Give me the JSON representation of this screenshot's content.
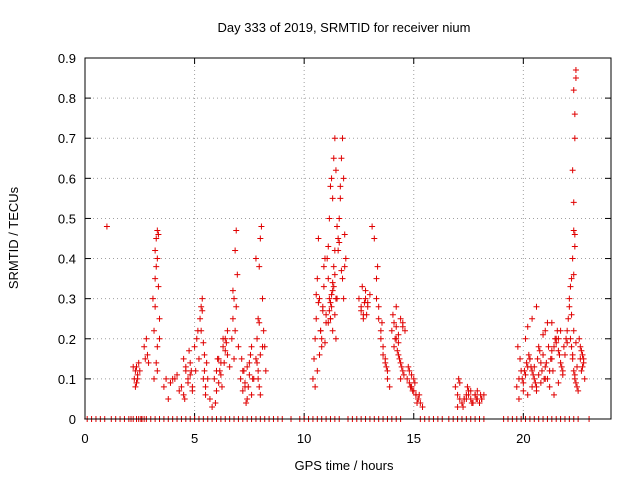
{
  "chart_data": {
    "type": "scatter",
    "title": "Day 333 of 2019, SRMTID for receiver nium",
    "xlabel": "GPS time / hours",
    "ylabel": "SRMTID / TECUs",
    "xlim": [
      0,
      24
    ],
    "ylim": [
      0,
      0.9
    ],
    "xticks": [
      0,
      5,
      10,
      15,
      20
    ],
    "xtick_labels": [
      "0",
      "5",
      "10",
      "15",
      "20"
    ],
    "yticks": [
      0,
      0.1,
      0.2,
      0.3,
      0.4,
      0.5,
      0.6,
      0.7,
      0.8,
      0.9
    ],
    "ytick_labels": [
      "0",
      "0.1",
      "0.2",
      "0.3",
      "0.4",
      "0.5",
      "0.6",
      "0.7",
      "0.8",
      "0.9"
    ],
    "grid": true,
    "marker": "+",
    "color": "#e00000",
    "series": [
      {
        "name": "SRMTID",
        "x": [
          0.1,
          0.3,
          0.5,
          0.7,
          0.9,
          1.2,
          1.4,
          1.6,
          1.8,
          2.0,
          2.1,
          2.2,
          2.35,
          2.45,
          2.55,
          2.6,
          2.7,
          2.8,
          3.0,
          3.2,
          3.4,
          3.6,
          3.8,
          4.0,
          4.2,
          4.4,
          4.6,
          4.8,
          5.0,
          5.2,
          5.4,
          5.6,
          5.8,
          6.0,
          6.2,
          6.4,
          6.6,
          6.8,
          7.0,
          7.2,
          7.4,
          7.6,
          7.8,
          8.0,
          8.2,
          8.4,
          8.6,
          8.8,
          9.0,
          9.4,
          9.8,
          10.0,
          10.2,
          10.4,
          10.6,
          10.8,
          11.0,
          11.2,
          11.4,
          11.6,
          12.0,
          12.2,
          12.4,
          12.6,
          12.8,
          13.0,
          13.2,
          13.4,
          13.6,
          13.8,
          14.0,
          14.2,
          14.4,
          15.3,
          15.5,
          15.7,
          15.9,
          16.1,
          16.3,
          16.6,
          16.8,
          17.0,
          17.2,
          17.4,
          17.6,
          17.8,
          18.0,
          18.2,
          19.1,
          19.3,
          19.5,
          19.7,
          19.9,
          20.1,
          20.3,
          20.5,
          20.7,
          20.9,
          21.1,
          21.3,
          21.5,
          21.7,
          21.9,
          22.1,
          22.3,
          22.5,
          23.0,
          1.0,
          2.2,
          2.25,
          2.3,
          2.35,
          2.4,
          2.45,
          2.5,
          2.3,
          2.4,
          2.35,
          2.7,
          2.75,
          2.8,
          2.85,
          2.9,
          3.1,
          3.15,
          3.2,
          3.2,
          3.25,
          3.25,
          3.3,
          3.3,
          3.35,
          3.35,
          3.4,
          3.4,
          3.2,
          3.3,
          3.25,
          3.15,
          3.3,
          3.6,
          3.7,
          3.8,
          3.9,
          4.0,
          4.1,
          4.2,
          4.3,
          4.4,
          4.5,
          4.6,
          4.7,
          4.8,
          4.9,
          4.5,
          4.6,
          4.7,
          4.8,
          4.9,
          4.55,
          4.75,
          4.85,
          5.0,
          5.05,
          5.1,
          5.15,
          5.2,
          5.25,
          5.3,
          5.35,
          5.4,
          5.45,
          5.5,
          5.55,
          5.6,
          5.3,
          5.4,
          5.5,
          5.35,
          5.45,
          5.7,
          5.8,
          5.9,
          6.0,
          6.1,
          6.2,
          6.3,
          6.4,
          6.5,
          6.6,
          6.0,
          6.1,
          6.2,
          6.3,
          6.4,
          6.5,
          5.95,
          6.05,
          6.15,
          6.25,
          6.35,
          6.45,
          6.7,
          6.75,
          6.8,
          6.85,
          6.9,
          6.95,
          7.0,
          6.8,
          6.85,
          6.9,
          6.75,
          7.1,
          7.2,
          7.3,
          7.4,
          7.5,
          7.6,
          7.7,
          7.2,
          7.3,
          7.4,
          7.5,
          7.6,
          7.15,
          7.25,
          7.35,
          7.45,
          7.55,
          7.65,
          7.8,
          7.85,
          7.9,
          7.95,
          8.0,
          8.05,
          8.1,
          8.15,
          8.2,
          8.25,
          7.9,
          7.95,
          8.0,
          7.85,
          7.95,
          8.1,
          7.8,
          7.9,
          8.0,
          10.4,
          10.45,
          10.5,
          10.55,
          10.6,
          10.65,
          10.7,
          10.75,
          10.8,
          10.85,
          10.9,
          10.95,
          11.0,
          10.5,
          10.6,
          10.7,
          10.8,
          10.9,
          11.0,
          10.55,
          10.65,
          10.75,
          10.85,
          10.95,
          11.05,
          11.1,
          11.15,
          11.2,
          11.25,
          11.3,
          11.35,
          11.4,
          11.45,
          11.5,
          11.55,
          11.1,
          11.15,
          11.2,
          11.25,
          11.3,
          11.35,
          11.4,
          11.45,
          11.2,
          11.3,
          11.4,
          11.15,
          11.25,
          11.35,
          11.45,
          11.1,
          11.2,
          11.3,
          11.4,
          11.5,
          11.6,
          11.65,
          11.7,
          11.75,
          11.8,
          11.85,
          11.9,
          11.6,
          11.7,
          11.8,
          11.55,
          11.65,
          11.75,
          11.85,
          12.5,
          12.6,
          12.7,
          12.8,
          12.9,
          13.0,
          12.6,
          12.7,
          12.8,
          12.9,
          12.65,
          12.75,
          12.85,
          13.1,
          13.2,
          13.3,
          13.4,
          13.5,
          13.6,
          13.7,
          13.8,
          13.3,
          13.4,
          13.5,
          13.6,
          13.7,
          13.8,
          13.9,
          13.35,
          13.55,
          13.75,
          14.0,
          14.1,
          14.2,
          14.3,
          14.4,
          14.5,
          14.6,
          14.1,
          14.2,
          14.3,
          14.4,
          14.5,
          14.15,
          14.25,
          14.35,
          14.45,
          14.55,
          14.05,
          14.2,
          14.3,
          14.4,
          14.5,
          14.7,
          14.8,
          14.9,
          15.0,
          15.1,
          15.2,
          15.3,
          15.4,
          14.8,
          14.9,
          15.0,
          15.1,
          15.2,
          14.75,
          14.85,
          14.95,
          15.05,
          15.15,
          15.25,
          16.9,
          17.0,
          17.1,
          17.2,
          17.3,
          17.4,
          17.5,
          17.6,
          17.7,
          17.8,
          17.9,
          18.0,
          18.1,
          18.2,
          17.0,
          17.2,
          17.4,
          17.6,
          17.8,
          18.0,
          17.1,
          17.3,
          17.5,
          17.7,
          17.9,
          18.1,
          17.05,
          17.25,
          17.45,
          17.65,
          17.85,
          18.05,
          19.7,
          19.8,
          19.9,
          20.0,
          20.1,
          20.2,
          20.3,
          20.4,
          20.5,
          20.6,
          20.7,
          20.8,
          20.9,
          21.0,
          21.1,
          21.2,
          21.3,
          21.4,
          21.5,
          21.6,
          21.7,
          21.8,
          21.9,
          22.0,
          19.75,
          19.85,
          19.95,
          20.05,
          20.15,
          20.25,
          20.35,
          20.45,
          20.55,
          20.65,
          20.75,
          20.85,
          20.95,
          21.05,
          21.15,
          21.25,
          21.35,
          21.45,
          21.55,
          21.65,
          21.75,
          19.8,
          20.0,
          20.2,
          20.4,
          20.6,
          20.8,
          21.0,
          21.2,
          21.4,
          21.6,
          21.8,
          20.1,
          20.3,
          20.5,
          20.7,
          20.9,
          21.1,
          21.3,
          21.5,
          21.7,
          20.2,
          20.4,
          20.6,
          21.0,
          21.3,
          21.6,
          21.85,
          21.95,
          22.0,
          22.05,
          22.1,
          22.15,
          22.2,
          22.25,
          22.3,
          22.35,
          22.4,
          22.45,
          22.5,
          22.1,
          22.2,
          22.3,
          22.4,
          22.15,
          22.25,
          22.35,
          22.45,
          22.2,
          22.25,
          22.3,
          22.35,
          22.4,
          22.3,
          22.35,
          22.25,
          22.3,
          22.35,
          22.4,
          22.3,
          22.35,
          22.55,
          22.6,
          22.65,
          22.7,
          22.75,
          22.6,
          22.7,
          22.8,
          22.65,
          22.75
        ],
        "y": [
          0,
          0,
          0,
          0,
          0,
          0,
          0,
          0,
          0,
          0,
          0,
          0,
          0,
          0,
          0,
          0,
          0,
          0,
          0,
          0,
          0,
          0,
          0,
          0,
          0,
          0,
          0,
          0,
          0,
          0,
          0,
          0,
          0,
          0,
          0,
          0,
          0,
          0,
          0,
          0,
          0,
          0,
          0,
          0,
          0,
          0,
          0,
          0,
          0,
          0,
          0,
          0,
          0,
          0,
          0,
          0,
          0,
          0,
          0,
          0,
          0,
          0,
          0,
          0,
          0,
          0,
          0,
          0,
          0,
          0,
          0,
          0,
          0,
          0,
          0,
          0,
          0,
          0,
          0,
          0,
          0,
          0,
          0,
          0,
          0,
          0,
          0,
          0,
          0,
          0,
          0,
          0,
          0,
          0,
          0,
          0,
          0,
          0,
          0,
          0,
          0,
          0,
          0,
          0,
          0,
          0,
          0,
          0.48,
          0.13,
          0.1,
          0.12,
          0.09,
          0.11,
          0.14,
          0.12,
          0.08,
          0.1,
          0.13,
          0.18,
          0.15,
          0.2,
          0.16,
          0.14,
          0.3,
          0.22,
          0.35,
          0.42,
          0.38,
          0.45,
          0.47,
          0.4,
          0.33,
          0.46,
          0.2,
          0.25,
          0.28,
          0.12,
          0.14,
          0.1,
          0.18,
          0.08,
          0.1,
          0.05,
          0.09,
          0.1,
          0.1,
          0.11,
          0.07,
          0.08,
          0.06,
          0.12,
          0.09,
          0.11,
          0.07,
          0.15,
          0.13,
          0.1,
          0.14,
          0.08,
          0.05,
          0.17,
          0.12,
          0.18,
          0.12,
          0.2,
          0.22,
          0.15,
          0.25,
          0.28,
          0.3,
          0.1,
          0.12,
          0.08,
          0.14,
          0.1,
          0.22,
          0.19,
          0.06,
          0.27,
          0.16,
          0.05,
          0.03,
          0.1,
          0.12,
          0.15,
          0.14,
          0.18,
          0.2,
          0.16,
          0.13,
          0.07,
          0.09,
          0.11,
          0.2,
          0.17,
          0.22,
          0.04,
          0.15,
          0.12,
          0.08,
          0.14,
          0.19,
          0.2,
          0.25,
          0.3,
          0.42,
          0.47,
          0.36,
          0.18,
          0.15,
          0.22,
          0.28,
          0.32,
          0.1,
          0.12,
          0.08,
          0.05,
          0.14,
          0.18,
          0.1,
          0.07,
          0.09,
          0.13,
          0.11,
          0.06,
          0.15,
          0.12,
          0.04,
          0.08,
          0.16,
          0.1,
          0.15,
          0.2,
          0.25,
          0.38,
          0.45,
          0.48,
          0.3,
          0.22,
          0.18,
          0.12,
          0.1,
          0.08,
          0.06,
          0.14,
          0.24,
          0.18,
          0.4,
          0.12,
          0.16,
          0.1,
          0.15,
          0.2,
          0.25,
          0.35,
          0.45,
          0.3,
          0.22,
          0.18,
          0.28,
          0.33,
          0.4,
          0.26,
          0.08,
          0.12,
          0.16,
          0.2,
          0.38,
          0.24,
          0.31,
          0.29,
          0.22,
          0.27,
          0.19,
          0.4,
          0.43,
          0.5,
          0.58,
          0.6,
          0.55,
          0.65,
          0.7,
          0.62,
          0.48,
          0.45,
          0.35,
          0.3,
          0.25,
          0.28,
          0.32,
          0.38,
          0.42,
          0.3,
          0.25,
          0.22,
          0.36,
          0.27,
          0.31,
          0.33,
          0.2,
          0.24,
          0.29,
          0.34,
          0.26,
          0.3,
          0.5,
          0.58,
          0.65,
          0.7,
          0.6,
          0.46,
          0.4,
          0.44,
          0.37,
          0.3,
          0.42,
          0.55,
          0.35,
          0.38,
          0.3,
          0.28,
          0.26,
          0.32,
          0.29,
          0.31,
          0.27,
          0.25,
          0.3,
          0.28,
          0.33,
          0.29,
          0.26,
          0.48,
          0.45,
          0.35,
          0.28,
          0.22,
          0.18,
          0.15,
          0.12,
          0.3,
          0.25,
          0.2,
          0.16,
          0.14,
          0.1,
          0.08,
          0.38,
          0.24,
          0.13,
          0.22,
          0.24,
          0.23,
          0.21,
          0.25,
          0.24,
          0.22,
          0.18,
          0.2,
          0.16,
          0.14,
          0.12,
          0.2,
          0.17,
          0.15,
          0.13,
          0.11,
          0.26,
          0.28,
          0.19,
          0.1,
          0.23,
          0.1,
          0.12,
          0.08,
          0.07,
          0.06,
          0.05,
          0.04,
          0.03,
          0.09,
          0.11,
          0.1,
          0.06,
          0.05,
          0.13,
          0.08,
          0.07,
          0.09,
          0.04,
          0.06,
          0.08,
          0.06,
          0.05,
          0.04,
          0.05,
          0.06,
          0.07,
          0.05,
          0.04,
          0.06,
          0.05,
          0.04,
          0.05,
          0.06,
          0.03,
          0.04,
          0.05,
          0.07,
          0.06,
          0.04,
          0.09,
          0.05,
          0.06,
          0.04,
          0.07,
          0.05,
          0.1,
          0.03,
          0.08,
          0.04,
          0.05,
          0.06,
          0.08,
          0.1,
          0.12,
          0.09,
          0.11,
          0.13,
          0.15,
          0.12,
          0.1,
          0.08,
          0.11,
          0.14,
          0.16,
          0.13,
          0.1,
          0.12,
          0.15,
          0.18,
          0.2,
          0.17,
          0.14,
          0.12,
          0.16,
          0.19,
          0.18,
          0.15,
          0.1,
          0.12,
          0.14,
          0.16,
          0.13,
          0.11,
          0.09,
          0.15,
          0.17,
          0.12,
          0.1,
          0.14,
          0.18,
          0.15,
          0.12,
          0.2,
          0.22,
          0.16,
          0.13,
          0.05,
          0.07,
          0.06,
          0.08,
          0.07,
          0.09,
          0.1,
          0.08,
          0.06,
          0.09,
          0.11,
          0.2,
          0.15,
          0.13,
          0.18,
          0.21,
          0.24,
          0.17,
          0.19,
          0.22,
          0.23,
          0.25,
          0.28,
          0.22,
          0.24,
          0.2,
          0.18,
          0.2,
          0.22,
          0.25,
          0.28,
          0.2,
          0.18,
          0.15,
          0.12,
          0.1,
          0.09,
          0.08,
          0.07,
          0.3,
          0.26,
          0.22,
          0.19,
          0.33,
          0.16,
          0.11,
          0.13,
          0.35,
          0.4,
          0.47,
          0.7,
          0.85,
          0.82,
          0.76,
          0.62,
          0.54,
          0.46,
          0.87,
          0.36,
          0.43,
          0.2,
          0.15,
          0.12,
          0.16,
          0.14,
          0.18,
          0.13,
          0.1,
          0.17,
          0.15
        ]
      }
    ]
  }
}
